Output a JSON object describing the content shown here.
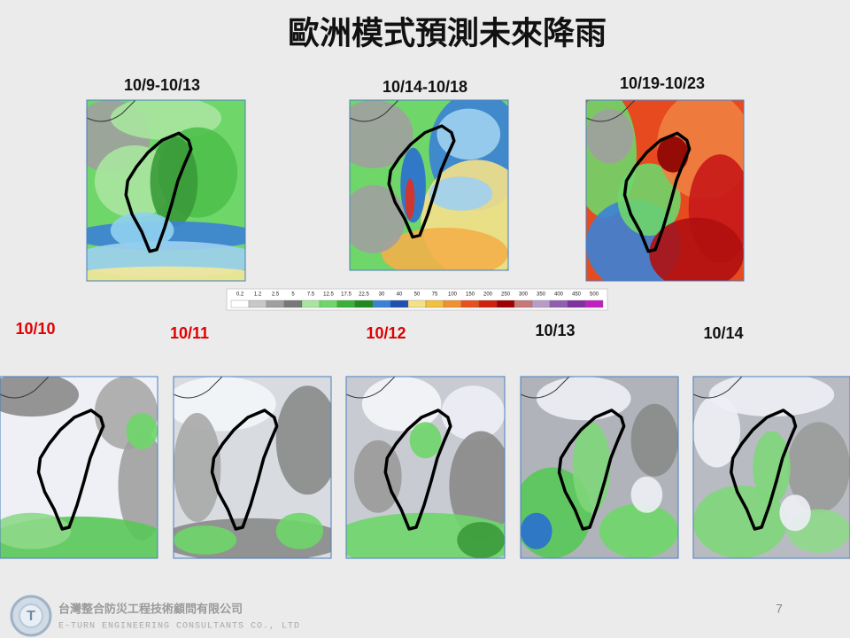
{
  "header": {
    "title": "歐洲模式預測未來降雨"
  },
  "periods": [
    "10/9-10/13",
    "10/14-10/18",
    "10/19-10/23"
  ],
  "colorbar": {
    "labels": [
      "0.2",
      "1.2",
      "2.5",
      "5",
      "7.5",
      "12.5",
      "17.5",
      "22.5",
      "30",
      "40",
      "50",
      "75",
      "100",
      "150",
      "200",
      "250",
      "300",
      "350",
      "400",
      "450",
      "500"
    ]
  },
  "days": [
    "10/10",
    "10/11",
    "10/12",
    "10/13",
    "10/14"
  ],
  "footer": {
    "company": "台灣整合防災工程技術顧問有限公司",
    "company_en": "E-TURN ENGINEERING CONSULTANTS CO., LTD",
    "page": "7"
  }
}
